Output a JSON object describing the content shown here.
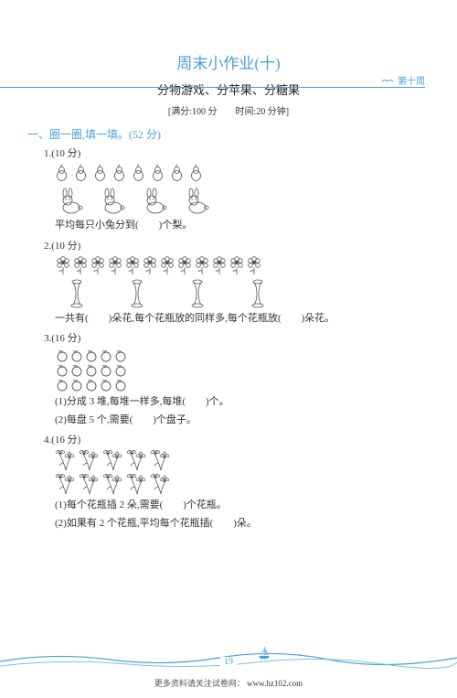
{
  "header": {
    "week_label": "第十周"
  },
  "title": "周末小作业(十)",
  "subtitle": "分物游戏、分苹果、分糖果",
  "meta": "[满分:100 分　　时间:20 分钟]",
  "section1": {
    "heading": "一、圈一圈,填一填。(52 分)"
  },
  "q1": {
    "num": "1.(10 分)",
    "pear_count": 8,
    "rabbit_count": 4,
    "line": "平均每只小兔分到(　　)个梨。"
  },
  "q2": {
    "num": "2.(10 分)",
    "flower_count": 12,
    "vase_count": 4,
    "line": "一共有(　　)朵花,每个花瓶放的同样多,每个花瓶放(　　)朵花。"
  },
  "q3": {
    "num": "3.(16 分)",
    "rows": [
      5,
      5,
      5
    ],
    "sub1": "(1)分成 3 堆,每堆一样多,每堆(　　)个。",
    "sub2": "(2)每盘 5 个,需要(　　)个盘子。"
  },
  "q4": {
    "num": "4.(16 分)",
    "rows": [
      5,
      5
    ],
    "sub1": "(1)每个花瓶插 2 朵,需要(　　)个花瓶。",
    "sub2": "(2)如果有 2 个花瓶,平均每个花瓶插(　　)朵。"
  },
  "footer": {
    "page": "19",
    "text": "更多资料请关注试卷网：",
    "url": "www.hz102.com"
  },
  "colors": {
    "accent": "#4a9fd8"
  }
}
